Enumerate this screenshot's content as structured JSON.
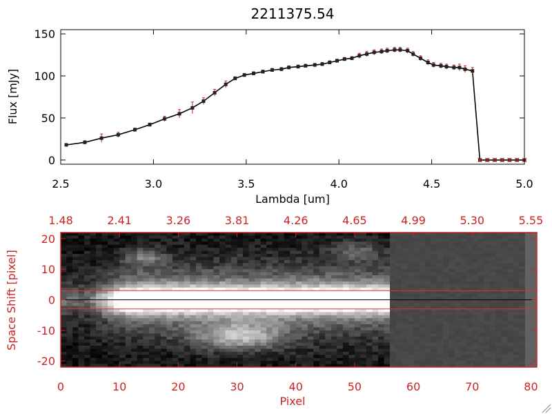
{
  "chart_data": [
    {
      "type": "line",
      "title": "2211375.54",
      "xlabel": "Lambda [um]",
      "ylabel": "Flux [mJy]",
      "xlim": [
        2.5,
        5.0
      ],
      "ylim": [
        -5,
        155
      ],
      "xticks": [
        "2.5",
        "3.0",
        "3.5",
        "4.0",
        "4.5",
        "5.0"
      ],
      "yticks": [
        "0",
        "50",
        "100",
        "150"
      ],
      "grid": false,
      "series": [
        {
          "x": [
            2.53,
            2.63,
            2.72,
            2.81,
            2.9,
            2.98,
            3.06,
            3.14,
            3.21,
            3.27,
            3.33,
            3.39,
            3.44,
            3.49,
            3.54,
            3.59,
            3.64,
            3.69,
            3.73,
            3.78,
            3.82,
            3.87,
            3.91,
            3.95,
            3.99,
            4.03,
            4.07,
            4.11,
            4.15,
            4.19,
            4.23,
            4.26,
            4.3,
            4.33,
            4.37,
            4.4,
            4.44,
            4.48,
            4.51,
            4.55,
            4.58,
            4.62,
            4.65,
            4.68,
            4.72,
            4.76,
            4.8,
            4.84,
            4.88,
            4.92,
            4.96,
            5.0
          ],
          "y": [
            18,
            21,
            26,
            30,
            36,
            42,
            49,
            55,
            62,
            70,
            80,
            90,
            97,
            101,
            103,
            105,
            107,
            108,
            110,
            111,
            112,
            113,
            114,
            116,
            118,
            120,
            121,
            124,
            126,
            128,
            129,
            130,
            131,
            131,
            130,
            126,
            121,
            116,
            113,
            112,
            111,
            110,
            110,
            108,
            106,
            0,
            0,
            0,
            0,
            0,
            0,
            0
          ],
          "yerr": [
            1.5,
            2,
            5,
            3,
            2,
            2,
            3,
            5,
            7,
            4,
            4,
            4,
            2,
            2,
            2,
            2,
            2,
            2,
            2,
            2,
            2,
            2,
            2,
            2,
            2,
            2,
            2,
            3,
            3,
            3,
            3,
            3,
            3,
            3,
            3,
            3,
            3,
            3,
            3,
            3,
            3,
            3,
            4,
            4,
            4,
            0,
            0,
            0,
            0,
            0,
            0,
            0
          ],
          "color": "#000000",
          "errcolor": "#cc2222"
        }
      ]
    },
    {
      "type": "heatmap",
      "xlabel": "Pixel",
      "ylabel": "Space Shift [pixel]",
      "xlim": [
        0,
        81
      ],
      "ylim": [
        -22,
        22
      ],
      "xticks": [
        "0",
        "10",
        "20",
        "30",
        "40",
        "50",
        "60",
        "70",
        "80"
      ],
      "yticks": [
        "20",
        "10",
        "0",
        "-10",
        "-20"
      ],
      "top_axis_ticks": [
        "1.48",
        "2.41",
        "3.26",
        "3.81",
        "4.26",
        "4.65",
        "4.99",
        "5.30",
        "5.55"
      ],
      "colormap": "grayscale",
      "bright_band_center": 0,
      "data_columns_end": 56,
      "aperture_lines": [
        3,
        -3
      ],
      "center_line": 0,
      "colors": {
        "axis": "#cc2222",
        "aperture": "#dd3333",
        "center": "#000000"
      }
    }
  ]
}
